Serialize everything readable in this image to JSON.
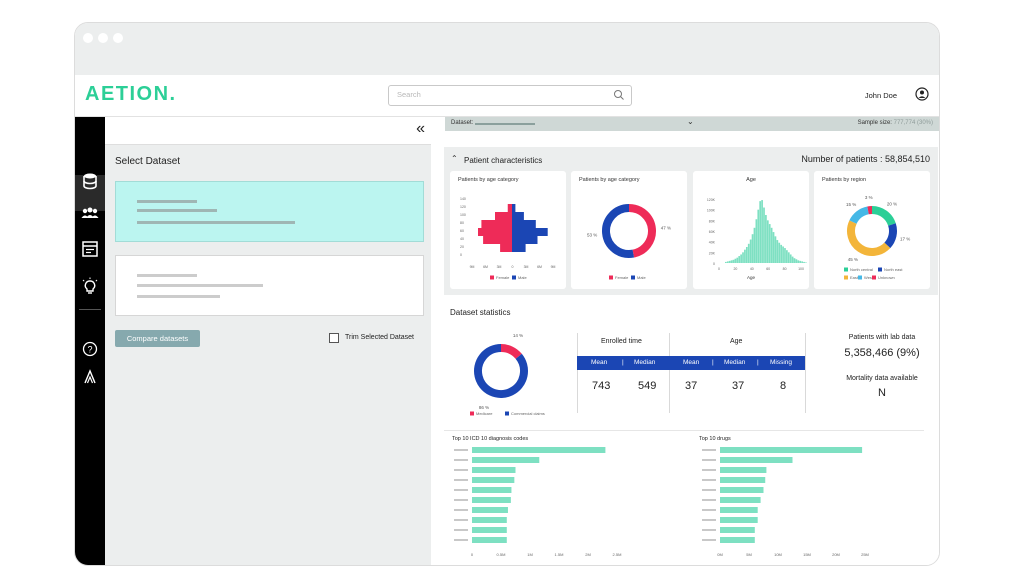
{
  "colors": {
    "accent": "#2ccf97",
    "teal": "#7ee0c2",
    "pink": "#ee2b58",
    "blue": "#1b46b4",
    "yellow": "#f3b53a",
    "light_blue": "#45b8e6",
    "grey_bg": "#eceeee"
  },
  "app": {
    "logo": "AETION."
  },
  "header": {
    "search_placeholder": "Search",
    "user_name": "John Doe"
  },
  "sidebar": {
    "icons": [
      "database-icon",
      "users-icon",
      "document-icon",
      "lightbulb-icon",
      "help-icon",
      "aetion-a-icon"
    ]
  },
  "left_panel": {
    "collapse_glyph": "«",
    "title": "Select Dataset",
    "compare_button": "Compare datasets",
    "trim_label": "Trim Selected Dataset"
  },
  "dataset_bar": {
    "label": "Dataset:",
    "sample_label": "Sample size:",
    "sample_value": "777,774 (30%)"
  },
  "patient_characteristics": {
    "title": "Patient characteristics",
    "number_label": "Number of patients : 58,854,510",
    "cards": [
      {
        "title": "Patients by age category",
        "chart_data": {
          "type": "bar",
          "subtype": "population-pyramid",
          "categories": [
            "140",
            "120",
            "100",
            "80",
            "60",
            "40",
            "20",
            "0"
          ],
          "series": [
            {
              "name": "Female",
              "values": [
                0,
                5,
                20,
                36,
                40,
                34,
                14,
                0
              ]
            },
            {
              "name": "Male",
              "values": [
                0,
                4,
                14,
                28,
                42,
                30,
                16,
                0
              ]
            }
          ],
          "x_ticks": [
            "9M",
            "6M",
            "3M",
            "0",
            "3M",
            "6M",
            "9M"
          ],
          "legend": [
            "Female",
            "Male"
          ]
        }
      },
      {
        "title": "Patients by age category",
        "chart_data": {
          "type": "pie",
          "donut": true,
          "labels": [
            "Female",
            "Male"
          ],
          "values": [
            47,
            53
          ],
          "data_labels": [
            "47 %",
            "53 %"
          ],
          "legend": [
            "Female",
            "Male"
          ]
        }
      },
      {
        "title": "Age",
        "chart_data": {
          "type": "bar",
          "subtype": "histogram",
          "x_ticks": [
            "0",
            "20",
            "40",
            "60",
            "80",
            "100"
          ],
          "y_ticks": [
            "120K",
            "100K",
            "80K",
            "60K",
            "40K",
            "20K",
            "0"
          ],
          "xlabel": "Age",
          "values": [
            2,
            3,
            4,
            5,
            6,
            8,
            10,
            13,
            16,
            20,
            25,
            30,
            36,
            44,
            54,
            66,
            82,
            100,
            116,
            118,
            104,
            90,
            80,
            73,
            66,
            58,
            50,
            43,
            38,
            34,
            31,
            28,
            24,
            20,
            16,
            12,
            9,
            7,
            5,
            4,
            3,
            2,
            1
          ],
          "ylim": [
            0,
            120
          ]
        }
      },
      {
        "title": "Patients by region",
        "chart_data": {
          "type": "pie",
          "donut": true,
          "labels": [
            "North central",
            "North east",
            "East",
            "West",
            "Unknown"
          ],
          "values": [
            20,
            17,
            45,
            15,
            3
          ],
          "data_labels": [
            "20 %",
            "17 %",
            "45 %",
            "15 %",
            "3 %"
          ],
          "legend": [
            "North central",
            "North east",
            "East",
            "West",
            "Unknown"
          ]
        }
      }
    ]
  },
  "dataset_statistics": {
    "title": "Dataset statistics",
    "payer_chart": {
      "chart_data": {
        "type": "pie",
        "donut": true,
        "labels": [
          "Medicare",
          "Commercial claims"
        ],
        "values": [
          14,
          86
        ],
        "data_labels": [
          "14 %",
          "86 %"
        ],
        "legend": [
          "Medicare",
          "Commercial claims"
        ]
      }
    },
    "enrolled_time": {
      "title": "Enrolled time",
      "headers": [
        "Mean",
        "Median"
      ],
      "values": [
        "743",
        "549"
      ]
    },
    "age": {
      "title": "Age",
      "headers": [
        "Mean",
        "Median",
        "Missing"
      ],
      "values": [
        "37",
        "37",
        "8"
      ]
    },
    "lab_data": {
      "title": "Patients with lab data",
      "value": "5,358,466 (9%)"
    },
    "mortality": {
      "title": "Mortality data available",
      "value": "N"
    }
  },
  "top_icd": {
    "title": "Top 10 ICD 10 diagnosis codes",
    "chart_data": {
      "type": "bar",
      "orientation": "horizontal",
      "values": [
        2.3,
        1.16,
        0.75,
        0.73,
        0.68,
        0.67,
        0.62,
        0.6,
        0.6,
        0.6
      ],
      "x_ticks": [
        "0",
        "0.5M",
        "1M",
        "1.5M",
        "2M",
        "2.5M"
      ],
      "xlim": [
        0,
        2.5
      ]
    }
  },
  "top_drugs": {
    "title": "Top 10 drugs",
    "chart_data": {
      "type": "bar",
      "orientation": "horizontal",
      "values": [
        24.5,
        12.5,
        8,
        7.8,
        7.5,
        7,
        6.5,
        6.5,
        6,
        6
      ],
      "x_ticks": [
        "0M",
        "5M",
        "10M",
        "15M",
        "20M",
        "25M"
      ],
      "xlim": [
        0,
        25
      ]
    }
  }
}
